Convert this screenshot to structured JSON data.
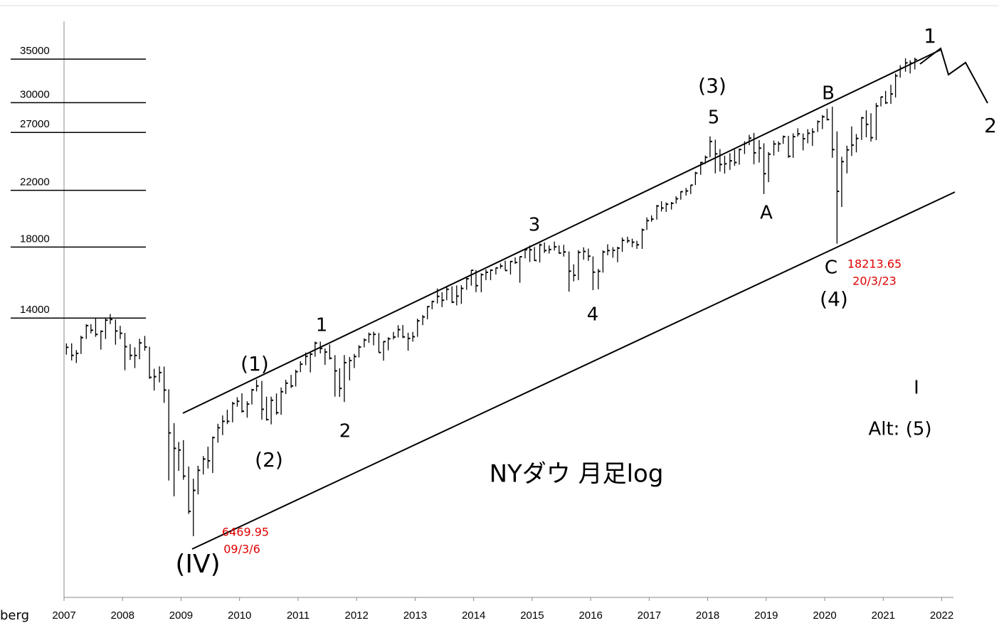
{
  "chart_data": {
    "type": "ohlc",
    "title": "NYダウ 月足log",
    "source": "berg",
    "log": true,
    "color": "#000000",
    "xlim": [
      2007,
      2022.2
    ],
    "xticks": [
      2007,
      2008,
      2009,
      2010,
      2011,
      2012,
      2013,
      2014,
      2015,
      2016,
      2017,
      2018,
      2019,
      2020,
      2021,
      2022
    ],
    "ylim": [
      5210,
      40000
    ],
    "yticks": [
      14000,
      18000,
      22000,
      27000,
      30000,
      35000
    ],
    "annotations": [
      "(IV)",
      "(1)",
      "(2)",
      "1",
      "2",
      "3",
      "4",
      "(3)",
      "5",
      "A",
      "B",
      "C",
      "(4)",
      "1",
      "2",
      "I",
      "Alt: (5)"
    ],
    "price_labels": [
      "6469.95",
      "09/3/6",
      "18213.65",
      "20/3/23"
    ],
    "x": [
      2007.04,
      2007.13,
      2007.21,
      2007.29,
      2007.38,
      2007.46,
      2007.54,
      2007.63,
      2007.71,
      2007.79,
      2007.88,
      2007.96,
      2008.04,
      2008.13,
      2008.21,
      2008.29,
      2008.38,
      2008.46,
      2008.54,
      2008.63,
      2008.71,
      2008.79,
      2008.88,
      2008.96,
      2009.04,
      2009.13,
      2009.21,
      2009.29,
      2009.38,
      2009.46,
      2009.54,
      2009.63,
      2009.71,
      2009.79,
      2009.88,
      2009.96,
      2010.04,
      2010.13,
      2010.21,
      2010.29,
      2010.38,
      2010.46,
      2010.54,
      2010.63,
      2010.71,
      2010.79,
      2010.88,
      2010.96,
      2011.04,
      2011.13,
      2011.21,
      2011.29,
      2011.38,
      2011.46,
      2011.54,
      2011.63,
      2011.71,
      2011.79,
      2011.88,
      2011.96,
      2012.04,
      2012.13,
      2012.21,
      2012.29,
      2012.38,
      2012.46,
      2012.54,
      2012.63,
      2012.71,
      2012.79,
      2012.88,
      2012.96,
      2013.04,
      2013.13,
      2013.21,
      2013.29,
      2013.38,
      2013.46,
      2013.54,
      2013.63,
      2013.71,
      2013.79,
      2013.88,
      2013.96,
      2014.04,
      2014.13,
      2014.21,
      2014.29,
      2014.38,
      2014.46,
      2014.54,
      2014.63,
      2014.71,
      2014.79,
      2014.88,
      2014.96,
      2015.04,
      2015.13,
      2015.21,
      2015.29,
      2015.38,
      2015.46,
      2015.54,
      2015.63,
      2015.71,
      2015.79,
      2015.88,
      2015.96,
      2016.04,
      2016.13,
      2016.21,
      2016.29,
      2016.38,
      2016.46,
      2016.54,
      2016.63,
      2016.71,
      2016.79,
      2016.88,
      2016.96,
      2017.04,
      2017.13,
      2017.21,
      2017.29,
      2017.38,
      2017.46,
      2017.54,
      2017.63,
      2017.71,
      2017.79,
      2017.88,
      2017.96,
      2018.04,
      2018.13,
      2018.21,
      2018.29,
      2018.38,
      2018.46,
      2018.54,
      2018.63,
      2018.71,
      2018.79,
      2018.88,
      2018.96,
      2019.04,
      2019.13,
      2019.21,
      2019.29,
      2019.38,
      2019.46,
      2019.54,
      2019.63,
      2019.71,
      2019.79,
      2019.88,
      2019.96,
      2020.04,
      2020.13,
      2020.21,
      2020.29,
      2020.38,
      2020.46,
      2020.54,
      2020.63,
      2020.71,
      2020.79,
      2020.88,
      2020.96,
      2021.04,
      2021.13,
      2021.21,
      2021.29,
      2021.38,
      2021.46,
      2021.54
    ],
    "high": [
      12800,
      12800,
      12500,
      13150,
      13700,
      13700,
      14020,
      13400,
      14000,
      14200,
      13930,
      13620,
      13280,
      12770,
      12620,
      13010,
      13140,
      12650,
      11700,
      11800,
      11790,
      10880,
      9650,
      9030,
      9090,
      8280,
      7930,
      8300,
      8590,
      8880,
      9200,
      9630,
      9920,
      10120,
      10410,
      10580,
      10730,
      10430,
      10900,
      11260,
      11210,
      10600,
      10600,
      10720,
      10950,
      11250,
      11450,
      11660,
      12020,
      12390,
      12420,
      12880,
      12880,
      12570,
      12750,
      12280,
      11720,
      12280,
      12200,
      12330,
      12720,
      13030,
      13300,
      13340,
      13280,
      12900,
      13080,
      13330,
      13650,
      13660,
      13290,
      13330,
      13970,
      14150,
      14590,
      14890,
      15540,
      15340,
      15630,
      15660,
      15710,
      15720,
      16170,
      16590,
      16590,
      16400,
      16630,
      16630,
      16740,
      16980,
      17150,
      17140,
      17350,
      17400,
      17900,
      18100,
      18000,
      18230,
      18290,
      18100,
      18350,
      18100,
      18140,
      17720,
      16930,
      17800,
      17980,
      17900,
      17410,
      16660,
      17790,
      18170,
      17990,
      18020,
      18620,
      18670,
      18540,
      18400,
      19220,
      19990,
      20130,
      20890,
      21170,
      21070,
      21110,
      21540,
      21930,
      22180,
      22420,
      23490,
      24330,
      24880,
      26620,
      26310,
      25450,
      24860,
      25090,
      25400,
      25510,
      26170,
      26770,
      26950,
      26280,
      25980,
      25190,
      26240,
      26160,
      26700,
      26670,
      26910,
      27400,
      26900,
      27310,
      27400,
      28170,
      28700,
      29370,
      29570,
      27100,
      24770,
      25760,
      27580,
      26840,
      28520,
      29200,
      28900,
      29960,
      30640,
      31270,
      31960,
      33260,
      34260,
      35090,
      34850,
      35170
    ],
    "low": [
      12300,
      12050,
      11940,
      12330,
      13000,
      13260,
      13100,
      12520,
      13000,
      13700,
      12740,
      13000,
      11640,
      12070,
      11730,
      12100,
      12470,
      11290,
      10830,
      11150,
      10370,
      7880,
      7450,
      8150,
      7900,
      7000,
      6469.95,
      7500,
      8050,
      8220,
      8090,
      9010,
      9250,
      9620,
      9680,
      10230,
      10020,
      9840,
      10310,
      10800,
      9770,
      9740,
      9610,
      9940,
      9940,
      10700,
      10930,
      10990,
      11560,
      11850,
      11550,
      12210,
      12350,
      11860,
      12090,
      10600,
      10590,
      10400,
      11230,
      11730,
      12180,
      12620,
      12820,
      12710,
      12390,
      12040,
      12490,
      12980,
      13070,
      13040,
      12470,
      12880,
      13100,
      13650,
      13940,
      14440,
      14740,
      14550,
      14910,
      14760,
      14640,
      14720,
      15470,
      15700,
      15340,
      15340,
      16010,
      16010,
      16330,
      16670,
      16560,
      16330,
      16950,
      15860,
      17290,
      17070,
      17140,
      17040,
      17630,
      17590,
      17780,
      17580,
      17400,
      15370,
      15940,
      16010,
      17210,
      17140,
      15450,
      15500,
      16440,
      17480,
      17330,
      17060,
      17690,
      18250,
      17990,
      17880,
      17880,
      19120,
      19680,
      19830,
      20410,
      20380,
      20550,
      20990,
      21280,
      21600,
      21710,
      22410,
      23240,
      24140,
      24720,
      23360,
      23510,
      23340,
      23650,
      23990,
      24080,
      25010,
      25810,
      24120,
      24270,
      21710,
      22640,
      24880,
      25210,
      25930,
      24680,
      24680,
      26610,
      25340,
      25980,
      25740,
      27040,
      27320,
      28170,
      24680,
      18213.65,
      20740,
      23360,
      24840,
      25160,
      26290,
      26540,
      26140,
      26270,
      29600,
      29860,
      29860,
      30550,
      32780,
      33470,
      33270,
      33740
    ],
    "close": [
      12622,
      12268,
      12354,
      13062,
      13628,
      13409,
      13212,
      13358,
      13896,
      13930,
      13372,
      13265,
      12650,
      12266,
      12263,
      12820,
      12638,
      11350,
      11378,
      11544,
      10851,
      9325,
      8829,
      8776,
      8001,
      7063,
      7609,
      8168,
      8500,
      8447,
      9172,
      9496,
      9712,
      9713,
      10345,
      10428,
      10067,
      10325,
      10857,
      11009,
      10137,
      9774,
      10466,
      10015,
      10788,
      11118,
      11006,
      11578,
      11892,
      12226,
      12320,
      12811,
      12570,
      12414,
      12143,
      11614,
      10913,
      11955,
      12046,
      12218,
      12633,
      12952,
      13212,
      13214,
      12393,
      12880,
      13009,
      13091,
      13437,
      13096,
      13026,
      13104,
      13861,
      14054,
      14579,
      14840,
      15116,
      14910,
      15500,
      14810,
      15130,
      15546,
      16086,
      16577,
      15699,
      16322,
      16458,
      16581,
      16717,
      16827,
      16563,
      17098,
      17043,
      17391,
      17828,
      17823,
      17165,
      18133,
      17776,
      17841,
      18011,
      17620,
      17690,
      16528,
      16285,
      17664,
      17720,
      17425,
      16466,
      16517,
      17685,
      17774,
      17787,
      17930,
      18432,
      18401,
      18308,
      18142,
      19124,
      19763,
      19864,
      20812,
      20663,
      20941,
      21009,
      21350,
      21891,
      21948,
      22405,
      23377,
      24272,
      24719,
      26149,
      25029,
      24103,
      24163,
      24416,
      24271,
      25415,
      25965,
      26458,
      25116,
      25538,
      23327,
      24999,
      25916,
      25929,
      26593,
      24815,
      26600,
      26864,
      26403,
      26917,
      27046,
      28051,
      28538,
      28256,
      25409,
      21917,
      24346,
      25383,
      25813,
      26428,
      28430,
      27782,
      26502,
      29639,
      30606,
      29983,
      30932,
      32982,
      33875,
      34529,
      34503,
      34935
    ]
  }
}
